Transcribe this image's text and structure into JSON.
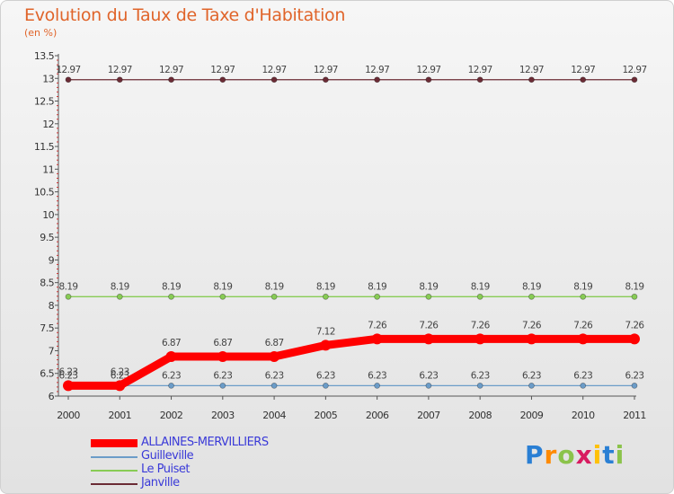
{
  "title": "Evolution du Taux de Taxe d'Habitation",
  "subtitle": "(en %)",
  "chart_data": {
    "type": "line",
    "x": [
      "2000",
      "2001",
      "2002",
      "2003",
      "2004",
      "2005",
      "2006",
      "2007",
      "2008",
      "2009",
      "2010",
      "2011"
    ],
    "ylim": [
      6,
      13.5
    ],
    "yticks": [
      "6",
      "6.5",
      "7",
      "7.5",
      "8",
      "8.5",
      "9",
      "9.5",
      "10",
      "10.5",
      "11",
      "11.5",
      "12",
      "12.5",
      "13",
      "13.5"
    ],
    "series": [
      {
        "name": "Janville",
        "color": "#6b2b35",
        "values": [
          12.97,
          12.97,
          12.97,
          12.97,
          12.97,
          12.97,
          12.97,
          12.97,
          12.97,
          12.97,
          12.97,
          12.97
        ],
        "labels": [
          "12.97",
          "12.97",
          "12.97",
          "12.97",
          "12.97",
          "12.97",
          "12.97",
          "12.97",
          "12.97",
          "12.97",
          "12.97",
          "12.97"
        ]
      },
      {
        "name": "Le Puiset",
        "color": "#88cc55",
        "values": [
          8.19,
          8.19,
          8.19,
          8.19,
          8.19,
          8.19,
          8.19,
          8.19,
          8.19,
          8.19,
          8.19,
          8.19
        ],
        "labels": [
          "8.19",
          "8.19",
          "8.19",
          "8.19",
          "8.19",
          "8.19",
          "8.19",
          "8.19",
          "8.19",
          "8.19",
          "8.19",
          "8.19"
        ]
      },
      {
        "name": "Guilleville",
        "color": "#6b9cc8",
        "values": [
          6.23,
          6.23,
          6.23,
          6.23,
          6.23,
          6.23,
          6.23,
          6.23,
          6.23,
          6.23,
          6.23,
          6.23
        ],
        "labels": [
          "6.23",
          "6.23",
          "6.23",
          "6.23",
          "6.23",
          "6.23",
          "6.23",
          "6.23",
          "6.23",
          "6.23",
          "6.23",
          "6.23"
        ]
      },
      {
        "name": "ALLAINES-MERVILLIERS",
        "color": "#ff0000",
        "values": [
          6.23,
          6.23,
          6.87,
          6.87,
          6.87,
          7.12,
          7.26,
          7.26,
          7.26,
          7.26,
          7.26,
          7.26
        ],
        "labels": [
          "6.23",
          "6.23",
          "6.87",
          "6.87",
          "6.87",
          "7.12",
          "7.26",
          "7.26",
          "7.26",
          "7.26",
          "7.26",
          "7.26"
        ]
      }
    ]
  },
  "legend": [
    {
      "label": "ALLAINES-MERVILLIERS",
      "color": "#ff0000"
    },
    {
      "label": "Guilleville",
      "color": "#6b9cc8"
    },
    {
      "label": "Le Puiset",
      "color": "#88cc55"
    },
    {
      "label": "Janville",
      "color": "#6b2b35"
    }
  ],
  "logo": {
    "letters": [
      "P",
      "r",
      "o",
      "x",
      "i",
      "t",
      "i"
    ],
    "colors": [
      "#2a7fd4",
      "#ff8a00",
      "#8bc34a",
      "#d81b60",
      "#ffc107",
      "#2a7fd4",
      "#8bc34a"
    ]
  }
}
